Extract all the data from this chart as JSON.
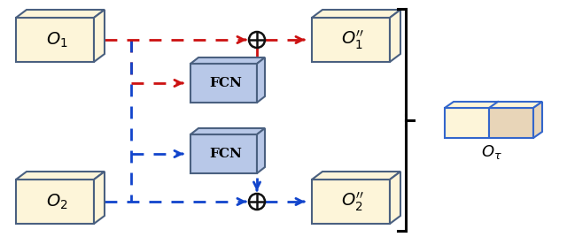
{
  "bg_color": "#ffffff",
  "box_color_light": "#fdf5d9",
  "box_color_blue": "#b8c8e8",
  "box_edge_blue": "#3366cc",
  "box_edge_dark": "#4a6080",
  "red_color": "#cc1111",
  "blue_color": "#1144cc",
  "black_color": "#111111",
  "o1_label": "$\\mathit{O}_1$",
  "o2_label": "$\\mathit{O}_2$",
  "o1pp_label": "$\\mathit{O}_1^{\\prime\\prime}$",
  "o2pp_label": "$\\mathit{O}_2^{\\prime\\prime}$",
  "otau_label": "$\\mathit{O}_{\\tau}$",
  "fcn_label": "FCN"
}
